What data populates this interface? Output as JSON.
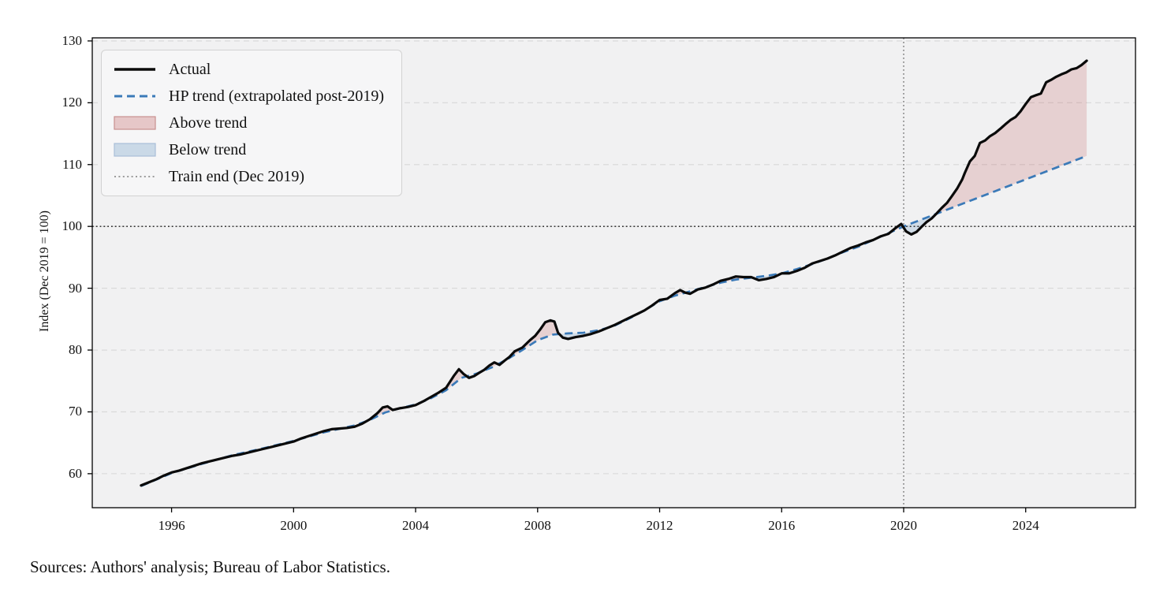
{
  "source_note": "Sources: Authors' analysis; Bureau of Labor Statistics.",
  "colors": {
    "actual": "#0a0a0a",
    "trend": "#3b7ab8",
    "above_fill": "#c1595c",
    "above_fill_opacity": 0.22,
    "above_edge": "#c98f8f",
    "below_fill": "#6f9ec9",
    "below_fill_opacity": 0.25,
    "below_edge": "#aabfd8",
    "plot_bg": "#f1f1f2",
    "grid": "#d8d8d8",
    "spine": "#000000",
    "hline": "#1a1a1a",
    "vline": "#7d7d7d",
    "legend_bg": "#f6f6f7",
    "legend_border": "#d2d2d2"
  },
  "chart_data": {
    "type": "line",
    "title": "",
    "xlabel": "",
    "ylabel": "Index (Dec 2019 = 100)",
    "x_ticks": [
      1996,
      2000,
      2004,
      2008,
      2012,
      2016,
      2020,
      2024
    ],
    "y_ticks": [
      60,
      70,
      80,
      90,
      100,
      110,
      120,
      130
    ],
    "xlim": [
      1993.4,
      2027.6
    ],
    "ylim": [
      54.5,
      130.5
    ],
    "grid": "horizontal-dashed",
    "reference_lines": {
      "hline_value": 100,
      "train_end_x": 2020.0,
      "train_end_label": "Train end (Dec 2019)"
    },
    "legend": [
      {
        "label": "Actual",
        "kind": "line-solid-black"
      },
      {
        "label": "HP trend (extrapolated post-2019)",
        "kind": "line-dashed-blue"
      },
      {
        "label": "Above trend",
        "kind": "patch-pink"
      },
      {
        "label": "Below trend",
        "kind": "patch-blue"
      },
      {
        "label": "Train end (Dec 2019)",
        "kind": "line-dotted-gray"
      }
    ],
    "legend_position": "upper-left",
    "series": [
      {
        "name": "Actual",
        "points": [
          [
            1995.0,
            58.1
          ],
          [
            1995.25,
            58.6
          ],
          [
            1995.5,
            59.1
          ],
          [
            1995.75,
            59.7
          ],
          [
            1996.0,
            60.2
          ],
          [
            1996.25,
            60.5
          ],
          [
            1996.5,
            60.9
          ],
          [
            1996.75,
            61.3
          ],
          [
            1997.0,
            61.7
          ],
          [
            1997.25,
            62.0
          ],
          [
            1997.5,
            62.3
          ],
          [
            1997.75,
            62.6
          ],
          [
            1998.0,
            62.9
          ],
          [
            1998.25,
            63.1
          ],
          [
            1998.5,
            63.4
          ],
          [
            1998.75,
            63.7
          ],
          [
            1999.0,
            64.0
          ],
          [
            1999.25,
            64.3
          ],
          [
            1999.5,
            64.6
          ],
          [
            1999.75,
            64.9
          ],
          [
            2000.0,
            65.2
          ],
          [
            2000.25,
            65.7
          ],
          [
            2000.5,
            66.1
          ],
          [
            2000.75,
            66.5
          ],
          [
            2001.0,
            66.9
          ],
          [
            2001.25,
            67.2
          ],
          [
            2001.5,
            67.3
          ],
          [
            2001.75,
            67.4
          ],
          [
            2002.0,
            67.6
          ],
          [
            2002.25,
            68.1
          ],
          [
            2002.5,
            68.8
          ],
          [
            2002.75,
            69.8
          ],
          [
            2002.92,
            70.7
          ],
          [
            2003.08,
            70.9
          ],
          [
            2003.25,
            70.3
          ],
          [
            2003.5,
            70.6
          ],
          [
            2003.75,
            70.8
          ],
          [
            2004.0,
            71.1
          ],
          [
            2004.25,
            71.7
          ],
          [
            2004.5,
            72.4
          ],
          [
            2004.75,
            73.1
          ],
          [
            2005.0,
            73.9
          ],
          [
            2005.25,
            75.8
          ],
          [
            2005.42,
            76.9
          ],
          [
            2005.58,
            76.1
          ],
          [
            2005.75,
            75.5
          ],
          [
            2005.92,
            75.8
          ],
          [
            2006.08,
            76.3
          ],
          [
            2006.25,
            76.8
          ],
          [
            2006.42,
            77.5
          ],
          [
            2006.58,
            78.0
          ],
          [
            2006.75,
            77.6
          ],
          [
            2006.92,
            78.3
          ],
          [
            2007.08,
            78.9
          ],
          [
            2007.25,
            79.8
          ],
          [
            2007.5,
            80.4
          ],
          [
            2007.75,
            81.6
          ],
          [
            2007.92,
            82.3
          ],
          [
            2008.08,
            83.3
          ],
          [
            2008.25,
            84.5
          ],
          [
            2008.42,
            84.8
          ],
          [
            2008.55,
            84.6
          ],
          [
            2008.67,
            82.8
          ],
          [
            2008.83,
            82.0
          ],
          [
            2009.0,
            81.8
          ],
          [
            2009.25,
            82.1
          ],
          [
            2009.5,
            82.3
          ],
          [
            2009.75,
            82.6
          ],
          [
            2010.0,
            83.0
          ],
          [
            2010.25,
            83.5
          ],
          [
            2010.5,
            84.0
          ],
          [
            2010.75,
            84.6
          ],
          [
            2011.0,
            85.2
          ],
          [
            2011.25,
            85.8
          ],
          [
            2011.5,
            86.4
          ],
          [
            2011.75,
            87.2
          ],
          [
            2012.0,
            88.1
          ],
          [
            2012.25,
            88.3
          ],
          [
            2012.5,
            89.2
          ],
          [
            2012.67,
            89.7
          ],
          [
            2012.83,
            89.3
          ],
          [
            2013.0,
            89.1
          ],
          [
            2013.25,
            89.8
          ],
          [
            2013.5,
            90.1
          ],
          [
            2013.75,
            90.6
          ],
          [
            2014.0,
            91.2
          ],
          [
            2014.25,
            91.5
          ],
          [
            2014.5,
            91.9
          ],
          [
            2014.75,
            91.8
          ],
          [
            2015.0,
            91.8
          ],
          [
            2015.25,
            91.3
          ],
          [
            2015.5,
            91.5
          ],
          [
            2015.75,
            91.8
          ],
          [
            2016.0,
            92.4
          ],
          [
            2016.25,
            92.4
          ],
          [
            2016.5,
            92.8
          ],
          [
            2016.75,
            93.3
          ],
          [
            2017.0,
            94.0
          ],
          [
            2017.25,
            94.4
          ],
          [
            2017.5,
            94.8
          ],
          [
            2017.75,
            95.3
          ],
          [
            2018.0,
            95.9
          ],
          [
            2018.25,
            96.5
          ],
          [
            2018.5,
            96.9
          ],
          [
            2018.75,
            97.4
          ],
          [
            2019.0,
            97.8
          ],
          [
            2019.25,
            98.4
          ],
          [
            2019.5,
            98.8
          ],
          [
            2019.75,
            99.8
          ],
          [
            2019.92,
            100.4
          ],
          [
            2020.08,
            99.2
          ],
          [
            2020.25,
            98.7
          ],
          [
            2020.42,
            99.1
          ],
          [
            2020.58,
            99.9
          ],
          [
            2020.75,
            100.7
          ],
          [
            2020.92,
            101.3
          ],
          [
            2021.08,
            102.1
          ],
          [
            2021.25,
            103.0
          ],
          [
            2021.42,
            103.8
          ],
          [
            2021.58,
            104.9
          ],
          [
            2021.75,
            106.1
          ],
          [
            2021.92,
            107.6
          ],
          [
            2022.0,
            108.6
          ],
          [
            2022.17,
            110.5
          ],
          [
            2022.33,
            111.4
          ],
          [
            2022.5,
            113.5
          ],
          [
            2022.67,
            113.9
          ],
          [
            2022.83,
            114.6
          ],
          [
            2023.0,
            115.1
          ],
          [
            2023.17,
            115.8
          ],
          [
            2023.33,
            116.5
          ],
          [
            2023.5,
            117.2
          ],
          [
            2023.67,
            117.7
          ],
          [
            2023.83,
            118.6
          ],
          [
            2024.0,
            119.8
          ],
          [
            2024.17,
            120.9
          ],
          [
            2024.33,
            121.2
          ],
          [
            2024.5,
            121.5
          ],
          [
            2024.67,
            123.3
          ],
          [
            2024.83,
            123.7
          ],
          [
            2025.0,
            124.2
          ],
          [
            2025.17,
            124.6
          ],
          [
            2025.33,
            124.9
          ],
          [
            2025.5,
            125.4
          ],
          [
            2025.67,
            125.6
          ],
          [
            2025.83,
            126.1
          ],
          [
            2026.0,
            126.8
          ]
        ]
      },
      {
        "name": "HP trend (extrapolated post-2019)",
        "points": [
          [
            1995.0,
            58.0
          ],
          [
            1996,
            60.1
          ],
          [
            1997,
            61.6
          ],
          [
            1998,
            63.0
          ],
          [
            1999,
            64.1
          ],
          [
            2000,
            65.3
          ],
          [
            2001,
            66.7
          ],
          [
            2002,
            67.8
          ],
          [
            2002.5,
            68.7
          ],
          [
            2003,
            69.9
          ],
          [
            2003.5,
            70.6
          ],
          [
            2004,
            71.2
          ],
          [
            2004.5,
            72.2
          ],
          [
            2005,
            73.5
          ],
          [
            2005.5,
            75.5
          ],
          [
            2006,
            76.2
          ],
          [
            2006.5,
            77.2
          ],
          [
            2007,
            78.5
          ],
          [
            2007.5,
            80.0
          ],
          [
            2008,
            81.6
          ],
          [
            2008.5,
            82.5
          ],
          [
            2009,
            82.7
          ],
          [
            2009.5,
            82.8
          ],
          [
            2010,
            83.2
          ],
          [
            2010.5,
            83.9
          ],
          [
            2011,
            85.1
          ],
          [
            2011.5,
            86.4
          ],
          [
            2012,
            87.9
          ],
          [
            2012.5,
            88.8
          ],
          [
            2013,
            89.5
          ],
          [
            2013.5,
            90.2
          ],
          [
            2014,
            90.9
          ],
          [
            2014.5,
            91.4
          ],
          [
            2015,
            91.7
          ],
          [
            2015.5,
            92.0
          ],
          [
            2016,
            92.4
          ],
          [
            2016.5,
            93.1
          ],
          [
            2017,
            93.9
          ],
          [
            2017.5,
            94.8
          ],
          [
            2018,
            95.8
          ],
          [
            2018.5,
            96.7
          ],
          [
            2019,
            97.8
          ],
          [
            2019.5,
            98.9
          ],
          [
            2020,
            100.0
          ],
          [
            2021,
            101.9
          ],
          [
            2022,
            103.8
          ],
          [
            2023,
            105.7
          ],
          [
            2024,
            107.6
          ],
          [
            2025,
            109.5
          ],
          [
            2026,
            111.4
          ]
        ]
      }
    ],
    "fills": {
      "above_label": "Above trend",
      "below_label": "Below trend"
    }
  }
}
